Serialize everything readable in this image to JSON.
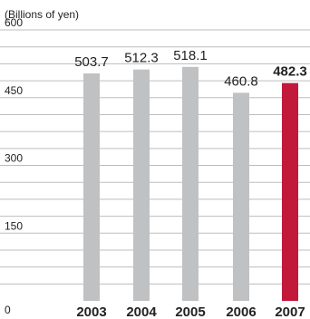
{
  "chart_data": {
    "type": "bar",
    "unit_label": "(Billions of yen)",
    "categories": [
      "2003",
      "2004",
      "2005",
      "2006",
      "2007"
    ],
    "values": [
      503.7,
      512.3,
      518.1,
      460.8,
      482.3
    ],
    "value_labels": [
      "503.7",
      "512.3",
      "518.1",
      "460.8",
      "482.3"
    ],
    "highlight_index": 4,
    "ylim": [
      0,
      600
    ],
    "yticks": [
      0,
      150,
      300,
      450,
      600
    ],
    "minor_gridlines_every": 37.5,
    "grid": true,
    "colors": {
      "bar": "#c0c1c3",
      "highlight": "#c2183a",
      "highlight_label": "#c2183a",
      "grid": "#bdbdbd",
      "text": "#222222"
    }
  }
}
